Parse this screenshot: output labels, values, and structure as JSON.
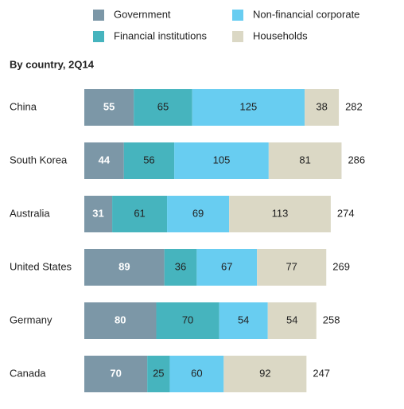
{
  "chart_data": {
    "type": "stacked-bar-horizontal",
    "subtitle": "By country, 2Q14",
    "categories": [
      "China",
      "South Korea",
      "Australia",
      "United States",
      "Germany",
      "Canada"
    ],
    "series": [
      {
        "name": "Government",
        "color": "#7c97a7",
        "values": [
          55,
          44,
          31,
          89,
          80,
          70
        ]
      },
      {
        "name": "Financial institutions",
        "color": "#46b4be",
        "values": [
          65,
          56,
          61,
          36,
          70,
          25
        ]
      },
      {
        "name": "Non-financial corporate",
        "color": "#68cdf1",
        "values": [
          125,
          105,
          69,
          67,
          54,
          60
        ]
      },
      {
        "name": "Households",
        "color": "#dbd8c5",
        "values": [
          38,
          81,
          113,
          77,
          54,
          92
        ]
      }
    ],
    "totals": [
      282,
      286,
      274,
      269,
      258,
      247
    ]
  }
}
